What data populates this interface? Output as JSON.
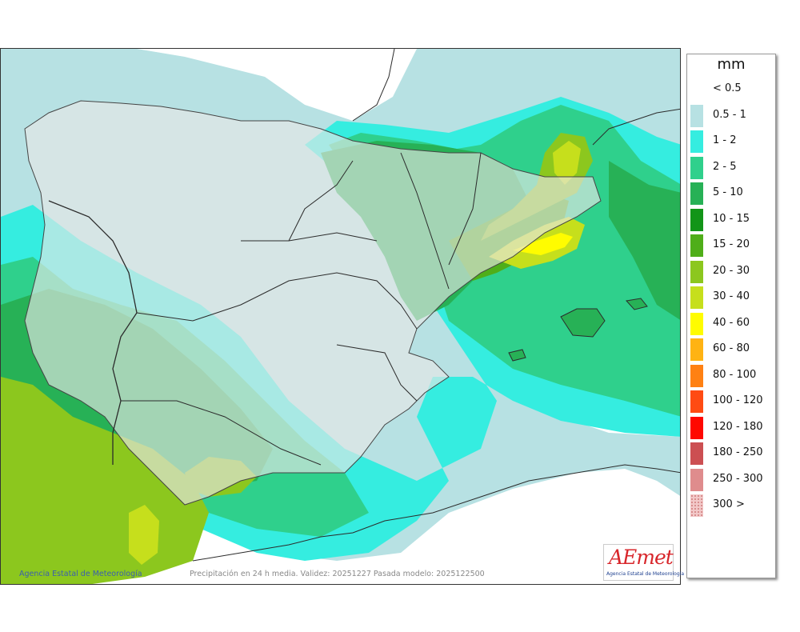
{
  "legend": {
    "unit": "mm",
    "items": [
      {
        "label": "< 0.5",
        "color": "#ffffff"
      },
      {
        "label": "0.5 - 1",
        "color": "#b7e1e3"
      },
      {
        "label": "1 - 2",
        "color": "#35ede0"
      },
      {
        "label": "2 - 5",
        "color": "#2fd08c"
      },
      {
        "label": "5 - 10",
        "color": "#27b156"
      },
      {
        "label": "10 - 15",
        "color": "#129518"
      },
      {
        "label": "15 - 20",
        "color": "#4fae19"
      },
      {
        "label": "20 - 30",
        "color": "#8cc71e"
      },
      {
        "label": "30 - 40",
        "color": "#c6df1c"
      },
      {
        "label": "40 - 60",
        "color": "#fffc00"
      },
      {
        "label": "60 - 80",
        "color": "#ffb313"
      },
      {
        "label": "80 - 100",
        "color": "#ff8113"
      },
      {
        "label": "100 - 120",
        "color": "#ff4b13"
      },
      {
        "label": "120 - 180",
        "color": "#ff0800"
      },
      {
        "label": "180 - 250",
        "color": "#cc4f52"
      },
      {
        "label": "250 - 300",
        "color": "#df8c8d"
      },
      {
        "label": "300 >",
        "color": "#f2c8c8"
      }
    ]
  },
  "credits": {
    "agency": "Agencia Estatal de Meteorología",
    "caption": "Precipitación en 24 h media. Validez: 20251227 Pasada modelo: 2025122500"
  },
  "logo": {
    "word": "AEmet",
    "subtitle": "Agencia Estatal de Meteorología"
  },
  "map": {
    "land_color": "#e6e6e6",
    "sea_color": "#ffffff",
    "border_color": "#2b2b2b"
  }
}
